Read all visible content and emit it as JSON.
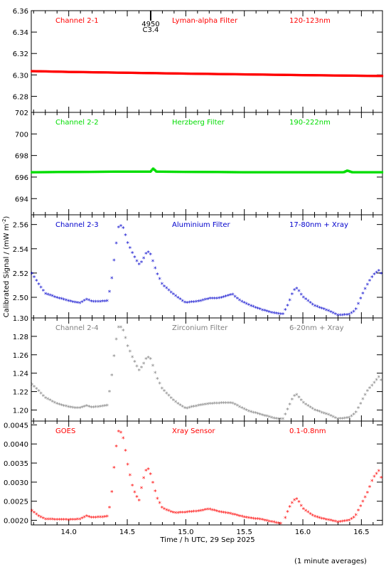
{
  "figure": {
    "xlabel": "Time / h UTC, 29 Sep 2025",
    "ylabel": "Calibrated Signal / (mW m",
    "ylabel_sup": "-2",
    "ylabel_close": ")",
    "footnote": "(1 minute averages)",
    "flare_marker": {
      "time": 14.7,
      "line1": "4950",
      "line2": "C3.4"
    }
  },
  "chart_data": [
    {
      "type": "scatter",
      "color": "#ff0000",
      "titles": [
        "Channel 2-1",
        "Lyman-alpha Filter",
        "120-123nm"
      ],
      "xlim": [
        13.68,
        16.68
      ],
      "ylim": [
        6.265,
        6.36
      ],
      "x_ticks": [
        14.0,
        14.5,
        15.0,
        15.5,
        16.0,
        16.5
      ],
      "y_ticks": [
        "6.28",
        "6.30",
        "6.32",
        "6.34",
        "6.36"
      ],
      "series": [
        {
          "x": [
            13.7,
            14.0,
            14.5,
            15.0,
            15.5,
            16.0,
            16.5,
            16.68
          ],
          "y": [
            6.3035,
            6.3028,
            6.302,
            6.3012,
            6.3005,
            6.2998,
            6.2992,
            6.299
          ]
        }
      ]
    },
    {
      "type": "scatter",
      "color": "#00dd00",
      "titles": [
        "Channel 2-2",
        "Herzberg Filter",
        "190-222nm"
      ],
      "xlim": [
        13.68,
        16.68
      ],
      "ylim": [
        692.5,
        702
      ],
      "x_ticks": [
        14.0,
        14.5,
        15.0,
        15.5,
        16.0,
        16.5
      ],
      "y_ticks": [
        "694",
        "696",
        "698",
        "700",
        "702"
      ],
      "series": [
        {
          "x": [
            13.7,
            14.4,
            14.7,
            14.72,
            14.75,
            15.5,
            16.35,
            16.38,
            16.42,
            16.68
          ],
          "y": [
            696.45,
            696.5,
            696.5,
            696.8,
            696.5,
            696.45,
            696.45,
            696.6,
            696.45,
            696.45
          ]
        }
      ]
    },
    {
      "type": "scatter",
      "color": "#0000cc",
      "titles": [
        "Channel 2-3",
        "Aluminium Filter",
        "17-80nm + Xray"
      ],
      "xlim": [
        13.68,
        16.68
      ],
      "ylim": [
        2.483,
        2.568
      ],
      "x_ticks": [
        14.0,
        14.5,
        15.0,
        15.5,
        16.0,
        16.5
      ],
      "y_ticks": [
        "2.50",
        "2.52",
        "2.54",
        "2.56"
      ],
      "series": [
        {
          "x": [
            13.68,
            13.75,
            13.8,
            13.9,
            14.0,
            14.1,
            14.15,
            14.2,
            14.25,
            14.33,
            14.36,
            14.4,
            14.43,
            14.47,
            14.5,
            14.55,
            14.6,
            14.63,
            14.67,
            14.7,
            14.75,
            14.8,
            14.9,
            15.0,
            15.1,
            15.2,
            15.3,
            15.4,
            15.45,
            15.55,
            15.65,
            15.75,
            15.83,
            15.88,
            15.92,
            15.95,
            16.0,
            16.1,
            16.2,
            16.3,
            16.4,
            16.45,
            16.5,
            16.55,
            16.6,
            16.65,
            16.68
          ],
          "y": [
            2.52,
            2.51,
            2.503,
            2.499,
            2.497,
            2.495,
            2.498,
            2.496,
            2.496,
            2.497,
            2.51,
            2.54,
            2.56,
            2.556,
            2.545,
            2.535,
            2.527,
            2.53,
            2.538,
            2.535,
            2.52,
            2.51,
            2.502,
            2.495,
            2.496,
            2.499,
            2.499,
            2.502,
            2.498,
            2.493,
            2.489,
            2.487,
            2.486,
            2.495,
            2.505,
            2.507,
            2.5,
            2.493,
            2.489,
            2.485,
            2.486,
            2.489,
            2.5,
            2.51,
            2.518,
            2.522,
            2.518
          ]
        }
      ]
    },
    {
      "type": "scatter",
      "color": "#808080",
      "titles": [
        "Channel 2-4",
        "Zirconium Filter",
        "6-20nm + Xray"
      ],
      "xlim": [
        13.68,
        16.68
      ],
      "ylim": [
        1.188,
        1.3
      ],
      "x_ticks": [
        14.0,
        14.5,
        15.0,
        15.5,
        16.0,
        16.5
      ],
      "y_ticks": [
        "1.20",
        "1.22",
        "1.24",
        "1.26",
        "1.28",
        "1.30"
      ],
      "series": [
        {
          "x": [
            13.68,
            13.75,
            13.8,
            13.9,
            14.0,
            14.1,
            14.15,
            14.2,
            14.25,
            14.33,
            14.36,
            14.4,
            14.43,
            14.47,
            14.5,
            14.55,
            14.6,
            14.63,
            14.67,
            14.7,
            14.75,
            14.8,
            14.9,
            15.0,
            15.1,
            15.2,
            15.3,
            15.4,
            15.45,
            15.55,
            15.65,
            15.75,
            15.83,
            15.88,
            15.92,
            15.95,
            16.0,
            16.1,
            16.2,
            16.3,
            16.4,
            16.45,
            16.5,
            16.55,
            16.6,
            16.65,
            16.68
          ],
          "y": [
            1.228,
            1.22,
            1.213,
            1.206,
            1.203,
            1.202,
            1.204,
            1.202,
            1.203,
            1.205,
            1.23,
            1.272,
            1.292,
            1.285,
            1.27,
            1.255,
            1.243,
            1.248,
            1.258,
            1.255,
            1.235,
            1.222,
            1.21,
            1.201,
            1.204,
            1.207,
            1.207,
            1.207,
            1.204,
            1.198,
            1.194,
            1.191,
            1.19,
            1.203,
            1.214,
            1.216,
            1.208,
            1.2,
            1.195,
            1.19,
            1.192,
            1.196,
            1.208,
            1.22,
            1.228,
            1.236,
            1.23
          ]
        }
      ]
    },
    {
      "type": "scatter",
      "color": "#ff0000",
      "titles": [
        "GOES",
        "Xray Sensor",
        "0.1-0.8nm"
      ],
      "xlim": [
        13.68,
        16.68
      ],
      "ylim": [
        0.00188,
        0.0046
      ],
      "x_ticks": [
        14.0,
        14.5,
        15.0,
        15.5,
        16.0,
        16.5
      ],
      "y_ticks": [
        "0.0020",
        "0.0025",
        "0.0030",
        "0.0035",
        "0.0040",
        "0.0045"
      ],
      "series": [
        {
          "x": [
            13.68,
            13.75,
            13.8,
            13.9,
            14.0,
            14.1,
            14.15,
            14.2,
            14.25,
            14.33,
            14.36,
            14.4,
            14.43,
            14.47,
            14.5,
            14.55,
            14.6,
            14.63,
            14.67,
            14.7,
            14.75,
            14.8,
            14.9,
            15.0,
            15.1,
            15.2,
            15.3,
            15.4,
            15.45,
            15.55,
            15.65,
            15.75,
            15.83,
            15.88,
            15.92,
            15.95,
            16.0,
            16.1,
            16.2,
            16.3,
            16.4,
            16.45,
            16.5,
            16.55,
            16.6,
            16.65,
            16.68
          ],
          "y": [
            0.00225,
            0.0021,
            0.00203,
            0.002,
            0.00201,
            0.00203,
            0.0021,
            0.00205,
            0.00207,
            0.0021,
            0.0025,
            0.0038,
            0.0044,
            0.0041,
            0.0035,
            0.0028,
            0.0025,
            0.003,
            0.0034,
            0.0032,
            0.0026,
            0.0023,
            0.0022,
            0.0022,
            0.00222,
            0.0023,
            0.0022,
            0.00215,
            0.00212,
            0.00205,
            0.002,
            0.00195,
            0.0019,
            0.0023,
            0.0025,
            0.00255,
            0.0023,
            0.0021,
            0.002,
            0.00195,
            0.002,
            0.0021,
            0.0024,
            0.0027,
            0.0031,
            0.0033,
            0.003
          ]
        }
      ]
    }
  ]
}
